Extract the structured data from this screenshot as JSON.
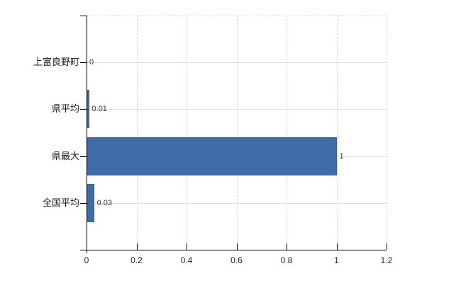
{
  "chart_data": {
    "type": "bar",
    "orientation": "horizontal",
    "title": "",
    "xlabel": "",
    "ylabel": "",
    "categories": [
      "上富良野町",
      "県平均",
      "県最大",
      "全国平均"
    ],
    "values": [
      0,
      0.01,
      1,
      0.03
    ],
    "value_labels": [
      "0",
      "0.01",
      "1",
      "0.03"
    ],
    "x_ticks": [
      0,
      0.2,
      0.4,
      0.6,
      0.8,
      1,
      1.2
    ],
    "x_tick_labels": [
      "0",
      "0.2",
      "0.4",
      "0.6",
      "0.8",
      "1",
      "1.2"
    ],
    "xlim": [
      0,
      1.2
    ],
    "grid": true,
    "legend": false,
    "colors": {
      "bar_fill": "#3f6ca6",
      "bar_border": "#35608f",
      "axis": "#000000",
      "h_gridline": "#dcdfdc",
      "v_gridline": "#d6d6d6",
      "background": "#ffffff"
    }
  }
}
